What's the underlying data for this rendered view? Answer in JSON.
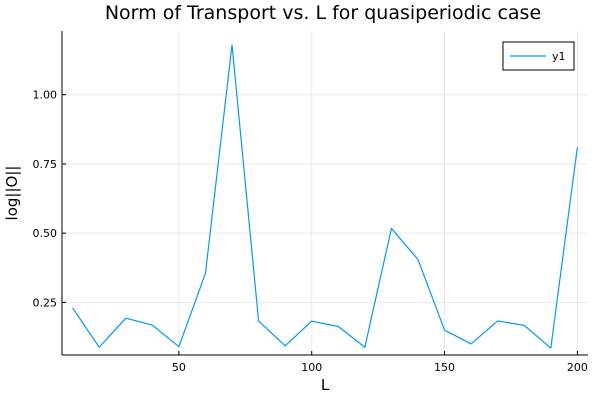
{
  "chart_data": {
    "type": "line",
    "title": "Norm of Transport vs. L for quasiperiodic case",
    "xlabel": "L",
    "ylabel": "log||O||",
    "xlim": [
      6,
      204
    ],
    "ylim": [
      0.06,
      1.23
    ],
    "xticks": [
      50,
      100,
      150,
      200
    ],
    "yticks": [
      0.25,
      0.5,
      0.75,
      1.0
    ],
    "xtick_labels": [
      "50",
      "100",
      "150",
      "200"
    ],
    "ytick_labels": [
      "0.25",
      "0.50",
      "0.75",
      "1.00"
    ],
    "grid": true,
    "legend_position": "top-right",
    "series": [
      {
        "name": "y1",
        "color": "#009af9",
        "x": [
          10,
          20,
          30,
          40,
          50,
          60,
          70,
          80,
          90,
          100,
          110,
          120,
          130,
          140,
          150,
          160,
          170,
          180,
          190,
          200
        ],
        "y": [
          0.23,
          0.088,
          0.193,
          0.168,
          0.09,
          0.355,
          1.18,
          0.183,
          0.093,
          0.182,
          0.163,
          0.088,
          0.517,
          0.405,
          0.15,
          0.1,
          0.183,
          0.167,
          0.085,
          0.81
        ]
      }
    ]
  }
}
